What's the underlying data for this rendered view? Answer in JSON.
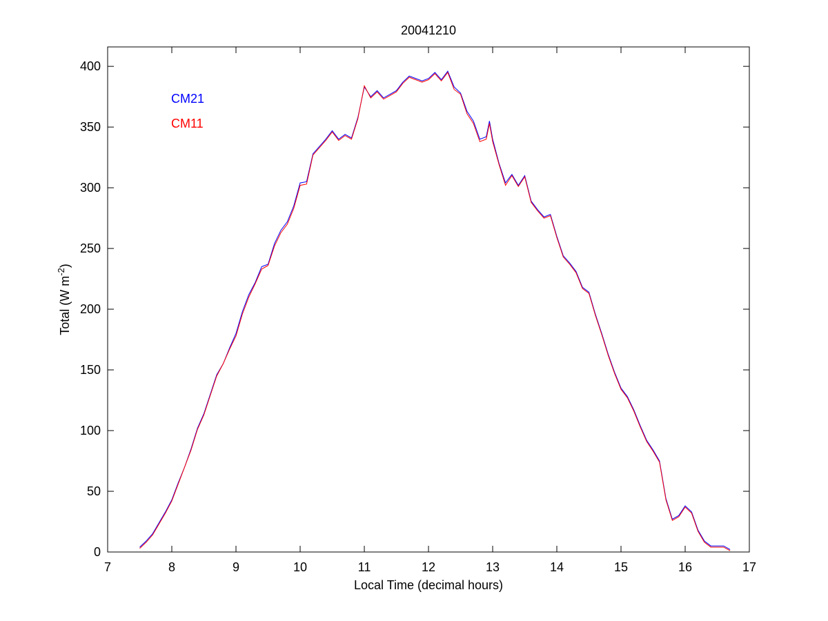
{
  "chart_data": {
    "type": "line",
    "title": "20041210",
    "xlabel": "Local Time (decimal hours)",
    "ylabel": {
      "text": "Total (W m",
      "superscript": "-2",
      "suffix": ")"
    },
    "x": [
      7.5,
      7.6,
      7.7,
      7.8,
      7.9,
      8.0,
      8.1,
      8.2,
      8.3,
      8.4,
      8.5,
      8.6,
      8.7,
      8.8,
      8.9,
      9.0,
      9.1,
      9.2,
      9.3,
      9.4,
      9.5,
      9.6,
      9.7,
      9.8,
      9.9,
      10.0,
      10.1,
      10.2,
      10.3,
      10.4,
      10.5,
      10.6,
      10.7,
      10.8,
      10.9,
      11.0,
      11.1,
      11.2,
      11.3,
      11.4,
      11.5,
      11.6,
      11.7,
      11.8,
      11.9,
      12.0,
      12.1,
      12.2,
      12.3,
      12.4,
      12.5,
      12.6,
      12.7,
      12.8,
      12.9,
      12.95,
      13.0,
      13.1,
      13.2,
      13.3,
      13.4,
      13.5,
      13.6,
      13.7,
      13.8,
      13.9,
      14.0,
      14.1,
      14.2,
      14.3,
      14.4,
      14.5,
      14.6,
      14.7,
      14.8,
      14.9,
      15.0,
      15.1,
      15.2,
      15.3,
      15.4,
      15.5,
      15.6,
      15.7,
      15.8,
      15.9,
      16.0,
      16.1,
      16.2,
      16.3,
      16.4,
      16.5,
      16.6,
      16.7
    ],
    "series": [
      {
        "name": "CM21",
        "color": "#0000ff",
        "values": [
          4,
          9,
          15,
          24,
          33,
          43,
          57,
          70,
          85,
          102,
          114,
          130,
          146,
          155,
          168,
          180,
          198,
          212,
          222,
          235,
          237,
          254,
          265,
          272,
          285,
          304,
          305,
          328,
          334,
          340,
          347,
          340,
          344,
          341,
          358,
          383,
          375,
          380,
          374,
          377,
          380,
          387,
          392,
          390,
          388,
          390,
          395,
          389,
          396,
          383,
          378,
          363,
          355,
          340,
          342,
          355,
          340,
          320,
          304,
          311,
          302,
          310,
          289,
          282,
          276,
          278,
          260,
          244,
          238,
          231,
          218,
          214,
          196,
          180,
          163,
          148,
          135,
          128,
          117,
          104,
          92,
          84,
          75,
          44,
          27,
          30,
          38,
          33,
          18,
          9,
          5,
          5,
          5,
          2
        ]
      },
      {
        "name": "CM11",
        "color": "#ff0000",
        "values": [
          3,
          8,
          14,
          23,
          32,
          42,
          56,
          70,
          84,
          101,
          113,
          129,
          145,
          155,
          167,
          178,
          196,
          210,
          221,
          233,
          236,
          252,
          263,
          270,
          283,
          302,
          303,
          327,
          333,
          339,
          346,
          339,
          343,
          340,
          357,
          384,
          374,
          379,
          373,
          376,
          379,
          386,
          391,
          389,
          387,
          389,
          394,
          388,
          395,
          381,
          377,
          361,
          353,
          338,
          340,
          353,
          338,
          319,
          302,
          310,
          301,
          309,
          288,
          281,
          275,
          277,
          259,
          243,
          237,
          230,
          217,
          213,
          195,
          179,
          162,
          147,
          134,
          127,
          116,
          103,
          91,
          83,
          74,
          43,
          26,
          29,
          37,
          32,
          17,
          8,
          4,
          4,
          4,
          1
        ]
      }
    ],
    "xlim": [
      7,
      17
    ],
    "xticks": [
      7,
      8,
      9,
      10,
      11,
      12,
      13,
      14,
      15,
      16,
      17
    ],
    "ylim": [
      0,
      416
    ],
    "yticks": [
      0,
      50,
      100,
      150,
      200,
      250,
      300,
      350,
      400
    ],
    "grid": false,
    "legend": "upper left"
  }
}
